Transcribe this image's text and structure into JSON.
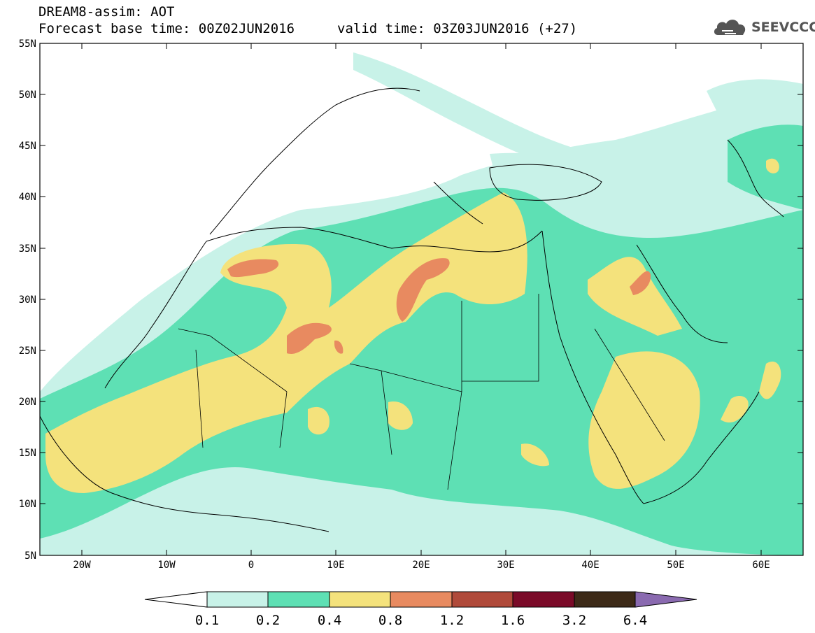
{
  "header": {
    "title": "DREAM8-assim: AOT",
    "base_time": "Forecast base time: 00Z02JUN2016",
    "valid_time": "valid time: 03Z03JUN2016 (+27)",
    "logo_text": "SEEVCCC",
    "logo_icon": "cloud-logo-icon"
  },
  "map": {
    "variable": "AOT",
    "lat_ticks": [
      "55N",
      "50N",
      "45N",
      "40N",
      "35N",
      "30N",
      "25N",
      "20N",
      "15N",
      "10N",
      "5N"
    ],
    "lon_ticks": [
      "20W",
      "10W",
      "0",
      "10E",
      "20E",
      "30E",
      "40E",
      "50E",
      "60E"
    ]
  },
  "colorbar": {
    "levels": [
      "0.1",
      "0.2",
      "0.4",
      "0.8",
      "1.2",
      "1.6",
      "3.2",
      "6.4"
    ],
    "colors": [
      "#ffffff",
      "#c8f2e8",
      "#5ee0b4",
      "#f4e27c",
      "#e88a60",
      "#b04a3a",
      "#7a0a28",
      "#3d2a18",
      "#8a6ab0"
    ]
  }
}
